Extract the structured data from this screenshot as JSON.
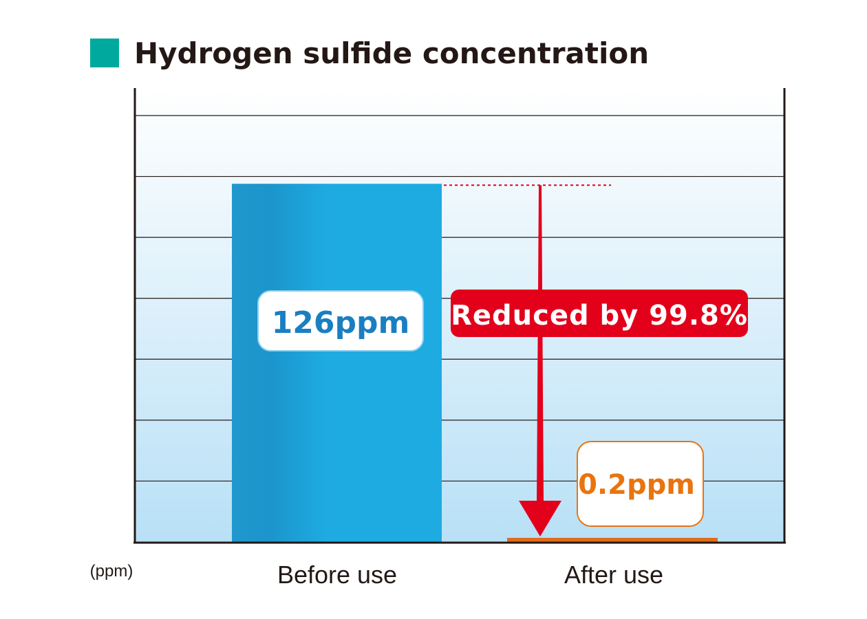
{
  "chart_data": {
    "type": "bar",
    "title": "Hydrogen sulfide concentration",
    "unit_label": "(ppm)",
    "categories": [
      "Before use",
      "After use"
    ],
    "values": [
      126,
      0.2
    ],
    "value_labels": [
      "126ppm",
      "0.2ppm"
    ],
    "ylim": [
      0,
      150
    ],
    "grid": true,
    "annotation": "Reduced by 99.8%"
  },
  "colors": {
    "accent": "#00a99d",
    "before_bar": "#1eabe1",
    "before_bar_dark": "#1b93c8",
    "after_bar": "#e06d1a",
    "after_label": "#e9740f",
    "before_label": "#1a7fc1",
    "reduction": "#e3001b",
    "title_text": "#231815"
  }
}
